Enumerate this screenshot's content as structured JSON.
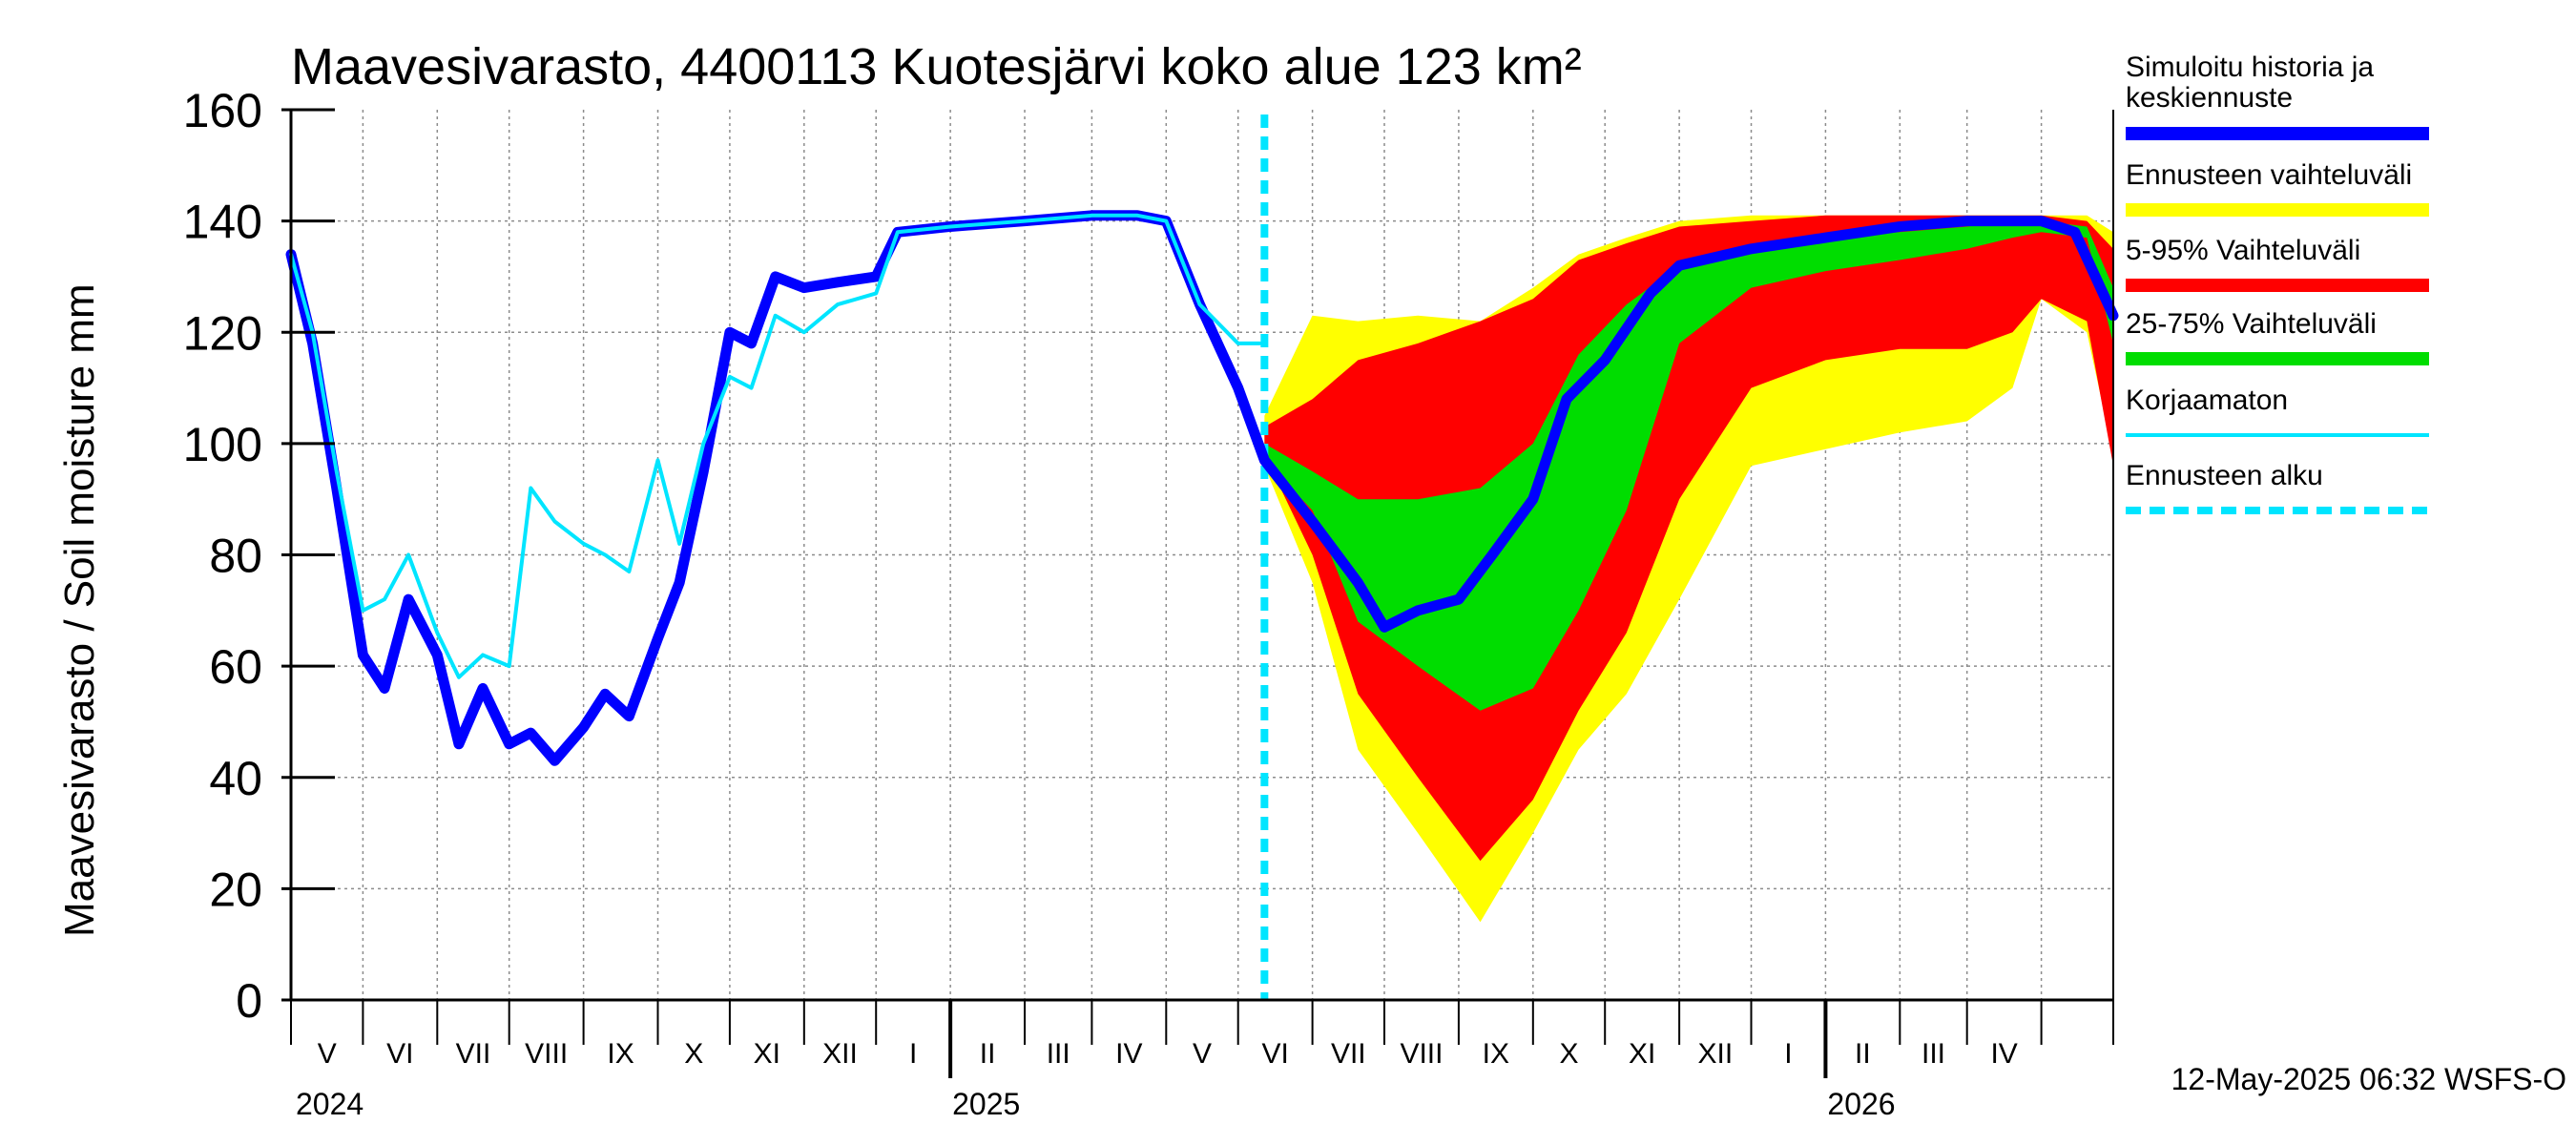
{
  "chart_data": {
    "type": "area",
    "title": "Maavesivarasto, 4400113 Kuotesjärvi koko alue 123 km²",
    "ylabel": "Maavesivarasto / Soil moisture   mm",
    "xlabel": "",
    "ylim": [
      0,
      160
    ],
    "yticks": [
      0,
      20,
      40,
      60,
      80,
      100,
      120,
      140,
      160
    ],
    "x_start": "2024-04-01",
    "x_end": "2026-05-01",
    "months": [
      "V",
      "VI",
      "VII",
      "VIII",
      "IX",
      "X",
      "XI",
      "XII",
      "I",
      "II",
      "III",
      "IV",
      "V",
      "VI",
      "VII",
      "VIII",
      "IX",
      "X",
      "XI",
      "XII",
      "I",
      "II",
      "III",
      "IV"
    ],
    "years": [
      "2024",
      "2025",
      "2026"
    ],
    "grid": true,
    "timestamp": "12-May-2025 06:32 WSFS-O",
    "forecast_start": "2025-05-12",
    "legend_position": "right",
    "legend": [
      {
        "label": "Simuloitu historia ja keskiennuste",
        "color": "#0000ff",
        "style": "thick"
      },
      {
        "label": "Ennusteen vaihteluväli",
        "color": "#ffff00",
        "style": "thick"
      },
      {
        "label": "5-95% Vaihteluväli",
        "color": "#ff0000",
        "style": "thick"
      },
      {
        "label": "25-75% Vaihteluväli",
        "color": "#00dd00",
        "style": "thick"
      },
      {
        "label": "Korjaamaton",
        "color": "#00e5ff",
        "style": "thin"
      },
      {
        "label": "Ennusteen alku",
        "color": "#00e5ff",
        "style": "dashed"
      }
    ],
    "series": [
      {
        "name": "Simuloitu historia ja keskiennuste",
        "color": "#0000ff",
        "x": [
          "2024-04-01",
          "2024-04-10",
          "2024-04-20",
          "2024-05-01",
          "2024-05-10",
          "2024-05-20",
          "2024-06-01",
          "2024-06-10",
          "2024-06-20",
          "2024-07-01",
          "2024-07-10",
          "2024-07-20",
          "2024-08-01",
          "2024-08-10",
          "2024-08-20",
          "2024-09-01",
          "2024-09-10",
          "2024-09-20",
          "2024-10-01",
          "2024-10-10",
          "2024-10-20",
          "2024-11-01",
          "2024-11-15",
          "2024-12-01",
          "2024-12-10",
          "2025-01-01",
          "2025-02-01",
          "2025-03-01",
          "2025-03-20",
          "2025-04-01",
          "2025-04-15",
          "2025-05-01",
          "2025-05-12",
          "2025-06-01",
          "2025-06-20",
          "2025-07-01",
          "2025-07-15",
          "2025-08-01",
          "2025-08-15",
          "2025-09-01",
          "2025-09-15",
          "2025-10-01",
          "2025-10-20",
          "2025-11-01",
          "2025-12-01",
          "2026-01-01",
          "2026-02-01",
          "2026-03-01",
          "2026-04-01",
          "2026-04-15",
          "2026-05-01"
        ],
        "y": [
          134,
          118,
          92,
          62,
          56,
          72,
          62,
          46,
          56,
          46,
          48,
          43,
          49,
          55,
          51,
          65,
          75,
          95,
          120,
          118,
          130,
          128,
          129,
          130,
          138,
          139,
          140,
          141,
          141,
          140,
          125,
          110,
          97,
          86,
          75,
          67,
          70,
          72,
          80,
          90,
          108,
          115,
          127,
          132,
          135,
          137,
          139,
          140,
          140,
          138,
          123
        ]
      },
      {
        "name": "Korjaamaton",
        "color": "#00e5ff",
        "x": [
          "2024-04-01",
          "2024-04-10",
          "2024-04-20",
          "2024-05-01",
          "2024-05-10",
          "2024-05-20",
          "2024-06-01",
          "2024-06-10",
          "2024-06-20",
          "2024-07-01",
          "2024-07-10",
          "2024-07-20",
          "2024-08-01",
          "2024-08-10",
          "2024-08-20",
          "2024-09-01",
          "2024-09-10",
          "2024-09-20",
          "2024-10-01",
          "2024-10-10",
          "2024-10-20",
          "2024-11-01",
          "2024-11-15",
          "2024-12-01",
          "2024-12-10",
          "2025-01-01",
          "2025-02-01",
          "2025-03-01",
          "2025-03-20",
          "2025-04-01",
          "2025-04-15",
          "2025-05-01",
          "2025-05-10"
        ],
        "y": [
          134,
          120,
          95,
          70,
          72,
          80,
          66,
          58,
          62,
          60,
          92,
          86,
          82,
          80,
          77,
          97,
          82,
          100,
          112,
          110,
          123,
          120,
          125,
          127,
          138,
          139,
          140,
          141,
          141,
          140,
          125,
          118,
          118
        ]
      }
    ],
    "bands": [
      {
        "name": "Ennusteen vaihteluväli",
        "color": "#ffff00",
        "x": [
          "2025-05-12",
          "2025-06-01",
          "2025-06-20",
          "2025-07-15",
          "2025-08-10",
          "2025-09-01",
          "2025-09-20",
          "2025-10-10",
          "2025-11-01",
          "2025-12-01",
          "2026-01-01",
          "2026-02-01",
          "2026-03-01",
          "2026-03-20",
          "2026-04-01",
          "2026-04-20",
          "2026-05-01"
        ],
        "upper": [
          105,
          123,
          122,
          123,
          122,
          128,
          134,
          137,
          140,
          141,
          141,
          141,
          141,
          141,
          141,
          141,
          138
        ],
        "lower": [
          96,
          75,
          45,
          30,
          14,
          30,
          45,
          55,
          72,
          96,
          99,
          102,
          104,
          110,
          126,
          120,
          98
        ]
      },
      {
        "name": "5-95% Vaihteluväli",
        "color": "#ff0000",
        "x": [
          "2025-05-12",
          "2025-06-01",
          "2025-06-20",
          "2025-07-15",
          "2025-08-10",
          "2025-09-01",
          "2025-09-20",
          "2025-10-10",
          "2025-11-01",
          "2025-12-01",
          "2026-01-01",
          "2026-02-01",
          "2026-03-01",
          "2026-03-20",
          "2026-04-01",
          "2026-04-20",
          "2026-05-01"
        ],
        "upper": [
          103,
          108,
          115,
          118,
          122,
          126,
          133,
          136,
          139,
          140,
          141,
          141,
          141,
          141,
          141,
          140,
          135
        ],
        "lower": [
          98,
          80,
          55,
          40,
          25,
          36,
          52,
          66,
          90,
          110,
          115,
          117,
          117,
          120,
          126,
          122,
          96
        ]
      },
      {
        "name": "25-75% Vaihteluväli",
        "color": "#00dd00",
        "x": [
          "2025-05-12",
          "2025-06-01",
          "2025-06-20",
          "2025-07-15",
          "2025-08-10",
          "2025-09-01",
          "2025-09-20",
          "2025-10-10",
          "2025-11-01",
          "2025-12-01",
          "2026-01-01",
          "2026-02-01",
          "2026-03-01",
          "2026-03-20",
          "2026-04-01",
          "2026-04-20",
          "2026-05-01"
        ],
        "upper": [
          100,
          95,
          90,
          90,
          92,
          100,
          116,
          125,
          132,
          135,
          137,
          138,
          139,
          140,
          140,
          139,
          128
        ],
        "lower": [
          97,
          88,
          68,
          60,
          52,
          56,
          70,
          88,
          118,
          128,
          131,
          133,
          135,
          137,
          138,
          137,
          118
        ]
      }
    ]
  }
}
